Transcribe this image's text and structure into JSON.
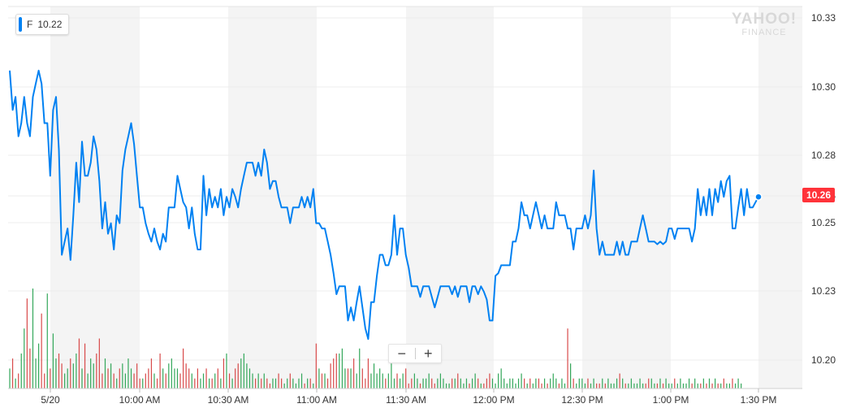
{
  "ticker": {
    "symbol": "F",
    "value": "10.22",
    "color": "#0081f2"
  },
  "logo": {
    "line1": "YAHOO!",
    "line2": "FINANCE"
  },
  "last_price": {
    "label": "10.26",
    "color": "#ff333a"
  },
  "zoom": {
    "minus": "−",
    "plus": "+"
  },
  "chart_data": {
    "type": "line",
    "title": "",
    "xlabel": "",
    "ylabel": "",
    "x_ticks": [
      "5/20",
      "10:00 AM",
      "10:30 AM",
      "11:00 AM",
      "11:30 AM",
      "12:00 PM",
      "12:30 PM",
      "1:00 PM",
      "1:30 PM"
    ],
    "y_ticks": [
      "10.33",
      "10.30",
      "10.28",
      "10.26",
      "10.25",
      "10.23",
      "10.20"
    ],
    "ylim": [
      10.195,
      10.334
    ],
    "xlim_minutes_after_open": [
      -14,
      260
    ],
    "grid": true,
    "line_color": "#0081f2",
    "series": [
      {
        "values": [
          10.31,
          10.295,
          10.3,
          10.285,
          10.29,
          10.3,
          10.29,
          10.285,
          10.3,
          10.305,
          10.31,
          10.305,
          10.29,
          10.29,
          10.27,
          10.295,
          10.3,
          10.28,
          10.24,
          10.245,
          10.25,
          10.238,
          10.255,
          10.275,
          10.26,
          10.283,
          10.27,
          10.27,
          10.275,
          10.285,
          10.28,
          10.268,
          10.25,
          10.26,
          10.248,
          10.252,
          10.242,
          10.255,
          10.252,
          10.272,
          10.28,
          10.285,
          10.29,
          10.282,
          10.27,
          10.258,
          10.258,
          10.252,
          10.248,
          10.245,
          10.25,
          10.245,
          10.242,
          10.248,
          10.245,
          10.258,
          10.258,
          10.258,
          10.27,
          10.265,
          10.26,
          10.258,
          10.25,
          10.258,
          10.248,
          10.242,
          10.242,
          10.27,
          10.255,
          10.265,
          10.258,
          10.262,
          10.258,
          10.265,
          10.255,
          10.262,
          10.258,
          10.265,
          10.262,
          10.258,
          10.265,
          10.27,
          10.275,
          10.275,
          10.275,
          10.27,
          10.275,
          10.27,
          10.28,
          10.275,
          10.265,
          10.268,
          10.268,
          10.262,
          10.258,
          10.258,
          10.258,
          10.252,
          10.258,
          10.258,
          10.258,
          10.262,
          10.258,
          10.262,
          10.258,
          10.265,
          10.252,
          10.252,
          10.25,
          10.25,
          10.245,
          10.24,
          10.233,
          10.225,
          10.228,
          10.228,
          10.228,
          10.215,
          10.22,
          10.215,
          10.222,
          10.228,
          10.22,
          10.212,
          10.208,
          10.222,
          10.222,
          10.232,
          10.24,
          10.24,
          10.236,
          10.236,
          10.24,
          10.255,
          10.24,
          10.25,
          10.25,
          10.24,
          10.235,
          10.228,
          10.228,
          10.228,
          10.224,
          10.228,
          10.228,
          10.228,
          10.224,
          10.22,
          10.224,
          10.228,
          10.228,
          10.228,
          10.228,
          10.225,
          10.228,
          10.224,
          10.228,
          10.228,
          10.228,
          10.222,
          10.228,
          10.228,
          10.225,
          10.228,
          10.226,
          10.223,
          10.215,
          10.215,
          10.232,
          10.233,
          10.236,
          10.236,
          10.236,
          10.236,
          10.245,
          10.245,
          10.25,
          10.26,
          10.255,
          10.255,
          10.25,
          10.255,
          10.26,
          10.255,
          10.25,
          10.255,
          10.25,
          10.25,
          10.25,
          10.26,
          10.255,
          10.255,
          10.255,
          10.25,
          10.25,
          10.242,
          10.25,
          10.25,
          10.25,
          10.255,
          10.25,
          10.255,
          10.272,
          10.25,
          10.24,
          10.245,
          10.24,
          10.24,
          10.24,
          10.24,
          10.245,
          10.24,
          10.245,
          10.24,
          10.24,
          10.245,
          10.245,
          10.245,
          10.25,
          10.255,
          10.25,
          10.245,
          10.245,
          10.245,
          10.244,
          10.245,
          10.244,
          10.245,
          10.25,
          10.25,
          10.246,
          10.25,
          10.25,
          10.25,
          10.25,
          10.25,
          10.245,
          10.25,
          10.265,
          10.255,
          10.262,
          10.255,
          10.265,
          10.255,
          10.265,
          10.26,
          10.268,
          10.262,
          10.268,
          10.27,
          10.25,
          10.25,
          10.258,
          10.265,
          10.255,
          10.265,
          10.258,
          10.258,
          10.26,
          10.262
        ]
      }
    ],
    "volume": {
      "up_color": "#33a75a",
      "down_color": "#d84a4a",
      "values": [
        0.2,
        0.3,
        0.1,
        0.15,
        0.35,
        0.6,
        0.9,
        0.4,
        1.0,
        0.3,
        0.45,
        0.75,
        0.15,
        0.95,
        0.2,
        0.55,
        0.3,
        0.35,
        0.25,
        0.15,
        0.2,
        0.3,
        0.25,
        0.35,
        0.5,
        0.2,
        0.45,
        0.15,
        0.3,
        0.25,
        0.35,
        0.5,
        0.15,
        0.3,
        0.2,
        0.25,
        0.15,
        0.1,
        0.2,
        0.25,
        0.15,
        0.3,
        0.2,
        0.15,
        0.25,
        0.1,
        0.1,
        0.15,
        0.2,
        0.3,
        0.15,
        0.1,
        0.35,
        0.2,
        0.15,
        0.25,
        0.3,
        0.2,
        0.2,
        0.15,
        0.4,
        0.25,
        0.2,
        0.15,
        0.1,
        0.2,
        0.1,
        0.15,
        0.2,
        0.1,
        0.1,
        0.15,
        0.2,
        0.1,
        0.3,
        0.35,
        0.15,
        0.1,
        0.2,
        0.25,
        0.3,
        0.35,
        0.25,
        0.2,
        0.15,
        0.1,
        0.15,
        0.1,
        0.15,
        0.1,
        0.05,
        0.1,
        0.1,
        0.15,
        0.1,
        0.05,
        0.1,
        0.15,
        0.1,
        0.05,
        0.1,
        0.15,
        0.05,
        0.1,
        0.1,
        0.05,
        0.45,
        0.2,
        0.15,
        0.15,
        0.1,
        0.25,
        0.3,
        0.35,
        0.35,
        0.4,
        0.2,
        0.2,
        0.2,
        0.3,
        0.15,
        0.4,
        0.2,
        0.1,
        0.3,
        0.15,
        0.25,
        0.15,
        0.2,
        0.15,
        0.1,
        0.15,
        0.25,
        0.1,
        0.15,
        0.1,
        0.15,
        0.2,
        0.05,
        0.1,
        0.15,
        0.1,
        0.05,
        0.1,
        0.1,
        0.15,
        0.1,
        0.05,
        0.1,
        0.15,
        0.1,
        0.05,
        0.05,
        0.1,
        0.1,
        0.15,
        0.1,
        0.05,
        0.1,
        0.05,
        0.1,
        0.15,
        0.1,
        0.05,
        0.05,
        0.1,
        0.15,
        0.1,
        0.05,
        0.15,
        0.2,
        0.1,
        0.05,
        0.1,
        0.1,
        0.05,
        0.1,
        0.15,
        0.1,
        0.05,
        0.1,
        0.05,
        0.1,
        0.1,
        0.05,
        0.1,
        0.05,
        0.1,
        0.15,
        0.1,
        0.05,
        0.1,
        0.05,
        0.6,
        0.25,
        0.1,
        0.05,
        0.1,
        0.1,
        0.05,
        0.1,
        0.05,
        0.1,
        0.05,
        0.05,
        0.1,
        0.05,
        0.1,
        0.05,
        0.05,
        0.1,
        0.15,
        0.1,
        0.05,
        0.05,
        0.1,
        0.05,
        0.05,
        0.1,
        0.05,
        0.05,
        0.1,
        0.1,
        0.05,
        0.05,
        0.1,
        0.05,
        0.1,
        0.05,
        0.05,
        0.1,
        0.05,
        0.1,
        0.05,
        0.05,
        0.1,
        0.05,
        0.1,
        0.05,
        0.05,
        0.1,
        0.05,
        0.1,
        0.05,
        0.1,
        0.05,
        0.05,
        0.1,
        0.05,
        0.05,
        0.1,
        0.05,
        0.1,
        0.05
      ]
    }
  }
}
